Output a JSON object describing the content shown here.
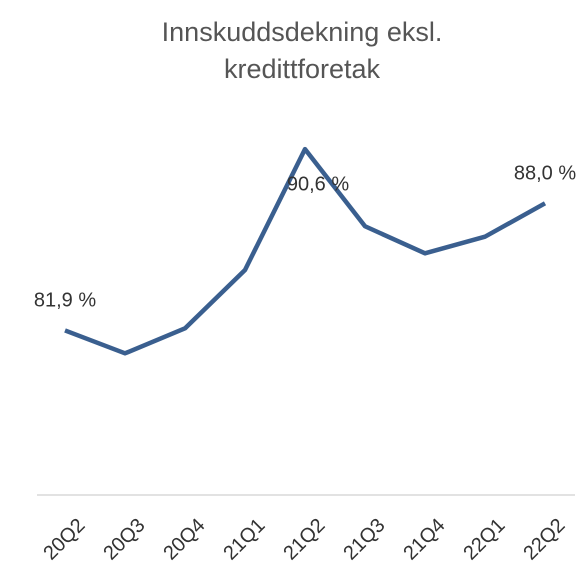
{
  "chart_data": {
    "type": "line",
    "title": "Innskuddsdekning eksl. kredittforetak",
    "categories": [
      "20Q2",
      "20Q3",
      "20Q4",
      "21Q1",
      "21Q2",
      "21Q3",
      "21Q4",
      "22Q1",
      "22Q2"
    ],
    "series": [
      {
        "name": "Innskuddsdekning",
        "color": "#3a5f8f",
        "values": [
          81.9,
          80.8,
          82.0,
          84.8,
          90.6,
          86.9,
          85.6,
          86.4,
          88.0
        ],
        "value_labels": [
          "81,9 %",
          null,
          null,
          null,
          "90,6 %",
          null,
          null,
          null,
          "88,0 %"
        ]
      }
    ],
    "ylim": [
      74,
      92
    ]
  }
}
